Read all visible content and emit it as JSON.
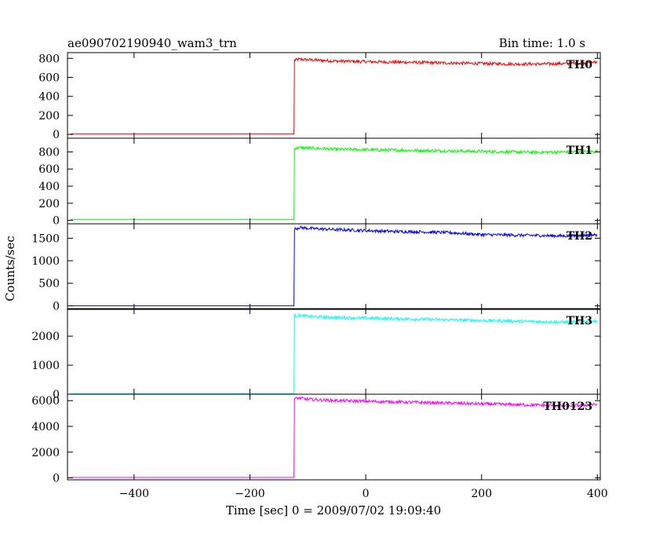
{
  "chart_data": {
    "type": "line",
    "title": "ae090702190940_wam3_trn",
    "subtitle": "Bin time: 1.0 s",
    "xlabel": "Time [sec] 0 = 2009/07/02 19:09:40",
    "ylabel": "Counts/sec",
    "xlim": [
      -515,
      405
    ],
    "x_ticks": [
      -400,
      -200,
      0,
      200,
      400
    ],
    "trigger_time": -123,
    "grid": false,
    "panels": [
      {
        "name": "TH0",
        "color": "#ff0000",
        "ylim": [
          -40,
          860
        ],
        "y_ticks": [
          0,
          200,
          400,
          600,
          800
        ],
        "series": [
          {
            "x": [
              -510,
              -124,
              -123,
              -115,
              -100,
              -50,
              0,
              50,
              100,
              150,
              200,
              250,
              300,
              350,
              400
            ],
            "y": [
              5,
              5,
              780,
              790,
              785,
              770,
              765,
              760,
              755,
              750,
              745,
              740,
              740,
              745,
              760
            ]
          }
        ]
      },
      {
        "name": "TH1",
        "color": "#00ff00",
        "ylim": [
          -40,
          960
        ],
        "y_ticks": [
          0,
          200,
          400,
          600,
          800
        ],
        "series": [
          {
            "x": [
              -510,
              -124,
              -123,
              -115,
              -100,
              -50,
              0,
              50,
              100,
              150,
              200,
              250,
              300,
              350,
              400
            ],
            "y": [
              10,
              10,
              840,
              850,
              845,
              830,
              825,
              820,
              815,
              810,
              805,
              800,
              795,
              800,
              805
            ]
          }
        ]
      },
      {
        "name": "TH2",
        "color": "#0000ff",
        "ylim": [
          -80,
          1820
        ],
        "y_ticks": [
          0,
          500,
          1000,
          1500
        ],
        "series": [
          {
            "x": [
              -510,
              -124,
              -123,
              -115,
              -100,
              -50,
              0,
              50,
              100,
              150,
              200,
              250,
              300,
              350,
              400
            ],
            "y": [
              0,
              0,
              1700,
              1740,
              1720,
              1690,
              1670,
              1650,
              1640,
              1620,
              1580,
              1570,
              1560,
              1550,
              1580
            ]
          }
        ]
      },
      {
        "name": "TH3",
        "color": "#00ffff",
        "ylim": [
          0,
          2950
        ],
        "y_ticks": [
          0,
          1000,
          2000
        ],
        "series": [
          {
            "x": [
              -510,
              -124,
              -123,
              -115,
              -100,
              -50,
              0,
              50,
              100,
              150,
              200,
              250,
              300,
              350,
              400
            ],
            "y": [
              20,
              20,
              2700,
              2720,
              2680,
              2640,
              2620,
              2600,
              2580,
              2560,
              2540,
              2520,
              2500,
              2480,
              2520
            ]
          }
        ]
      },
      {
        "name": "TH0123",
        "color": "#ff00ff",
        "ylim": [
          -150,
          6500
        ],
        "y_ticks": [
          0,
          2000,
          4000,
          6000
        ],
        "series": [
          {
            "x": [
              -510,
              -124,
              -123,
              -115,
              -100,
              -50,
              0,
              50,
              100,
              150,
              200,
              250,
              300,
              350,
              400
            ],
            "y": [
              30,
              30,
              6150,
              6200,
              6100,
              6000,
              5950,
              5900,
              5850,
              5800,
              5750,
              5700,
              5650,
              5600,
              5700
            ]
          }
        ]
      }
    ]
  }
}
